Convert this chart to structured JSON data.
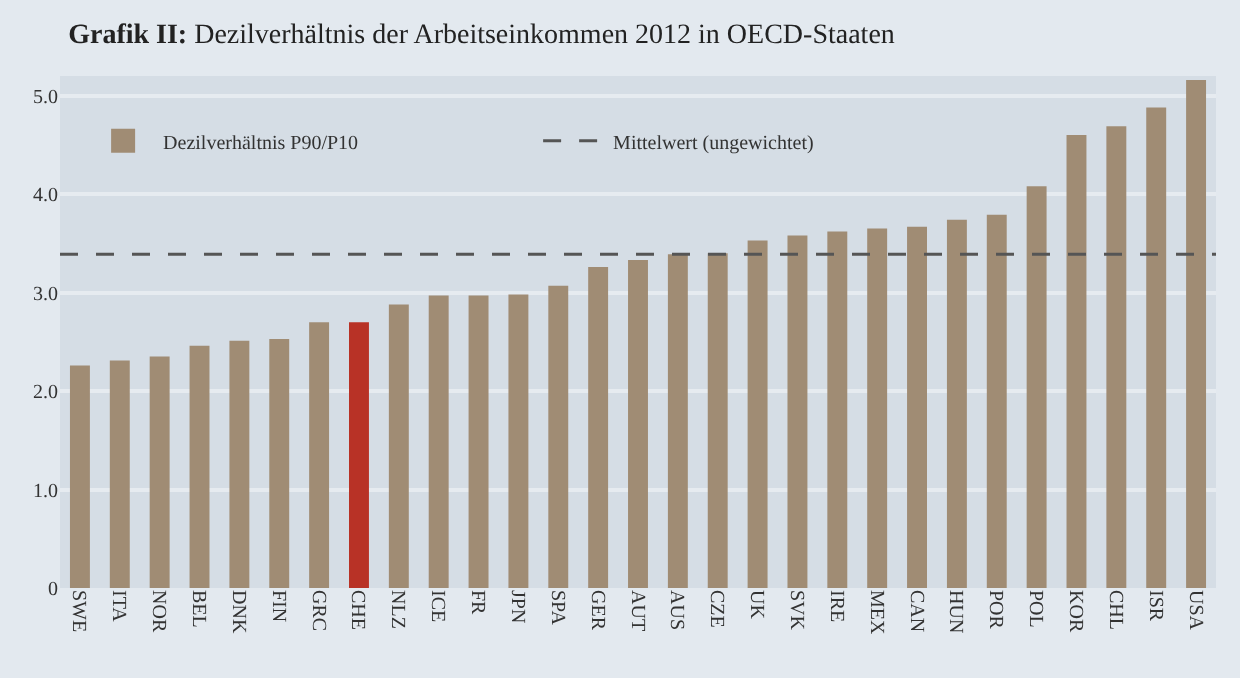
{
  "chart_data": {
    "type": "bar",
    "title": "Grafik II: Dezilverhältnis der Arbeitseinkommen 2012 in OECD-Staaten",
    "categories": [
      "SWE",
      "ITA",
      "NOR",
      "BEL",
      "DNK",
      "FIN",
      "GRC",
      "CHE",
      "NLZ",
      "ICE",
      "FR",
      "JPN",
      "SPA",
      "GER",
      "AUT",
      "AUS",
      "CZE",
      "UK",
      "SVK",
      "IRE",
      "MEX",
      "CAN",
      "HUN",
      "POR",
      "POL",
      "KOR",
      "CHL",
      "ISR",
      "USA"
    ],
    "series": [
      {
        "name": "Dezilverhältnis P90/P10",
        "colors": [
          "#a08c74",
          "#a08c74",
          "#a08c74",
          "#a08c74",
          "#a08c74",
          "#a08c74",
          "#a08c74",
          "#b83226",
          "#a08c74",
          "#a08c74",
          "#a08c74",
          "#a08c74",
          "#a08c74",
          "#a08c74",
          "#a08c74",
          "#a08c74",
          "#a08c74",
          "#a08c74",
          "#a08c74",
          "#a08c74",
          "#a08c74",
          "#a08c74",
          "#a08c74",
          "#a08c74",
          "#a08c74",
          "#a08c74",
          "#a08c74",
          "#a08c74",
          "#a08c74"
        ],
        "values": [
          2.26,
          2.31,
          2.35,
          2.46,
          2.51,
          2.53,
          2.7,
          2.7,
          2.88,
          2.97,
          2.97,
          2.98,
          3.07,
          3.26,
          3.33,
          3.39,
          3.4,
          3.53,
          3.58,
          3.62,
          3.65,
          3.67,
          3.74,
          3.79,
          4.08,
          4.6,
          4.69,
          4.88,
          5.16
        ]
      }
    ],
    "ref_lines": [
      {
        "axis": "y",
        "value": 3.39,
        "label": "Mittelwert (ungewichtet)",
        "color": "#555555",
        "line_style": "dashed"
      }
    ],
    "ylim": [
      0,
      5.2
    ],
    "yticks": [
      0,
      {
        "value": 1,
        "label": "1.0"
      },
      {
        "value": 2,
        "label": "2.0"
      },
      {
        "value": 3,
        "label": "3.0"
      },
      {
        "value": 4,
        "label": "4.0"
      },
      {
        "value": 5,
        "label": "5.0"
      }
    ],
    "grid": "y",
    "legend": "top left"
  }
}
